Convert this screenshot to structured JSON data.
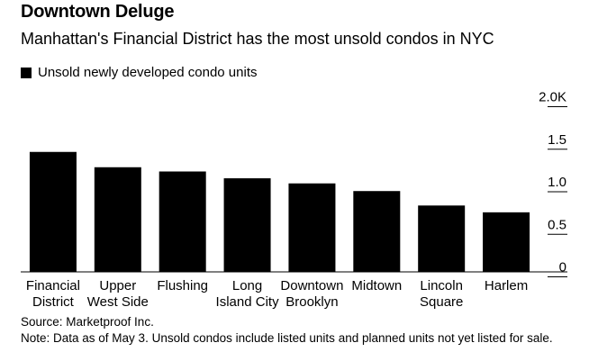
{
  "title": "Downtown Deluge",
  "subtitle": "Manhattan's Financial District has the most unsold condos in NYC",
  "legend": {
    "label": "Unsold newly developed condo units",
    "color": "#000000"
  },
  "source": "Source: Marketproof Inc.",
  "note": "Note: Data as of May 3. Unsold condos include listed units and planned units not yet listed for sale.",
  "chart_data": {
    "type": "bar",
    "categories": [
      [
        "Financial",
        "District"
      ],
      [
        "Upper",
        "West Side"
      ],
      [
        "Flushing"
      ],
      [
        "Long",
        "Island City"
      ],
      [
        "Downtown",
        "Brooklyn"
      ],
      [
        "Midtown"
      ],
      [
        "Lincoln",
        "Square"
      ],
      [
        "Harlem"
      ]
    ],
    "series": [
      {
        "name": "Unsold newly developed condo units",
        "values": [
          1410,
          1230,
          1180,
          1100,
          1040,
          950,
          780,
          700
        ],
        "color": "#000000"
      }
    ],
    "yticks": [
      "2.0K",
      "1.5",
      "1.0",
      "0.5",
      "0"
    ],
    "ylim": [
      0,
      2000
    ],
    "y_axis_side": "right",
    "grid": false
  }
}
